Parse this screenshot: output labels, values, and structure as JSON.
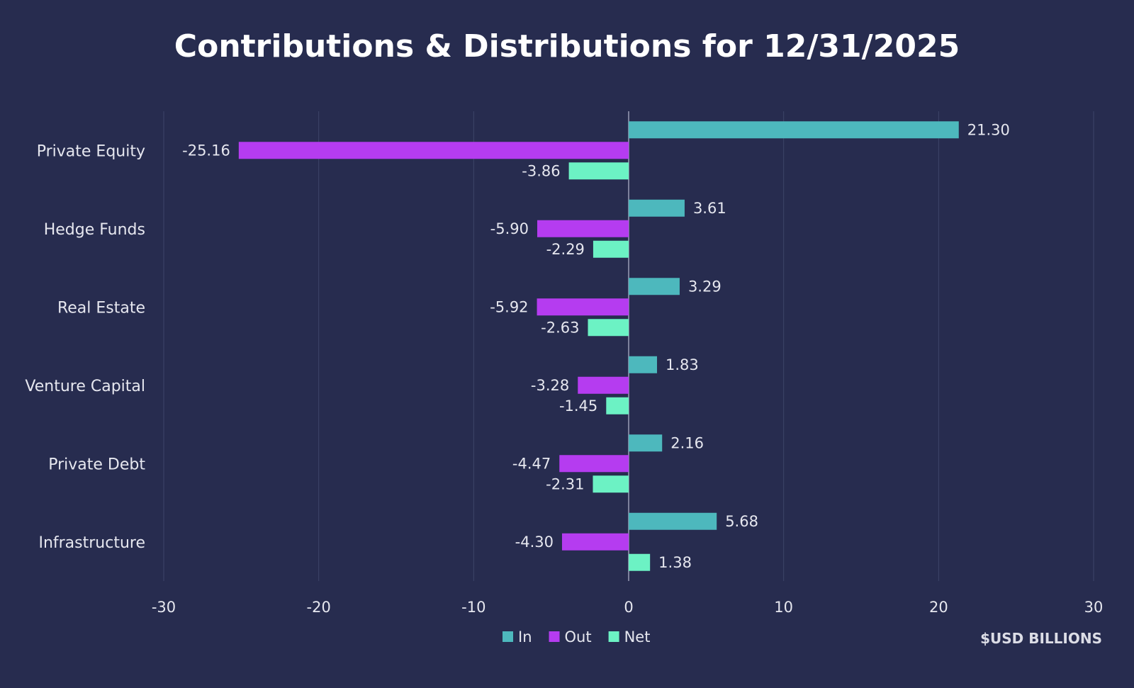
{
  "chart_data": {
    "type": "bar",
    "orientation": "horizontal",
    "title": "Contributions & Distributions for 12/31/2025",
    "unit_label": "$USD BILLIONS",
    "categories": [
      "Private Equity",
      "Hedge Funds",
      "Real Estate",
      "Venture Capital",
      "Private Debt",
      "Infrastructure"
    ],
    "series": [
      {
        "name": "In",
        "color": "#4db8bd",
        "values": [
          21.3,
          3.61,
          3.29,
          1.83,
          2.16,
          5.68
        ],
        "labels": [
          "21.30",
          "3.61",
          "3.29",
          "1.83",
          "2.16",
          "5.68"
        ]
      },
      {
        "name": "Out",
        "color": "#b53cf0",
        "values": [
          -25.16,
          -5.9,
          -5.92,
          -3.28,
          -4.47,
          -4.3
        ],
        "labels": [
          "-25.16",
          "-5.90",
          "-5.92",
          "-3.28",
          "-4.47",
          "-4.30"
        ]
      },
      {
        "name": "Net",
        "color": "#6cf2c4",
        "values": [
          -3.86,
          -2.29,
          -2.63,
          -1.45,
          -2.31,
          1.38
        ],
        "labels": [
          "-3.86",
          "-2.29",
          "-2.63",
          "-1.45",
          "-2.31",
          "1.38"
        ]
      }
    ],
    "xlim": [
      -30,
      30
    ],
    "xticks": [
      -30,
      -20,
      -10,
      0,
      10,
      20,
      30
    ],
    "xtick_labels": [
      "-30",
      "-20",
      "-10",
      "0",
      "10",
      "20",
      "30"
    ],
    "grid": true,
    "legend_position": "bottom-center"
  }
}
